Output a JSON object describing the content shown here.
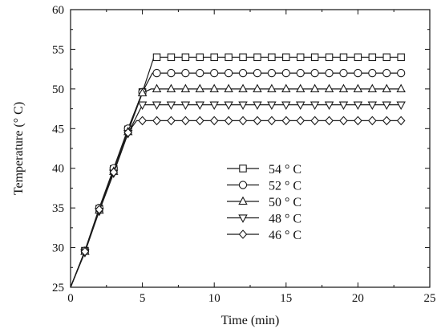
{
  "chart_data": {
    "type": "line",
    "title": "",
    "xlabel": "Time (min)",
    "ylabel": "Temperature (° C)",
    "xlim": [
      0,
      25
    ],
    "ylim": [
      25,
      60
    ],
    "xticks": [
      0,
      5,
      10,
      15,
      20,
      25
    ],
    "yticks": [
      25,
      30,
      35,
      40,
      45,
      50,
      55,
      60
    ],
    "xtick_labels": [
      "0",
      "5",
      "10",
      "15",
      "20",
      "25"
    ],
    "ytick_labels": [
      "25",
      "30",
      "35",
      "40",
      "45",
      "50",
      "55",
      "60"
    ],
    "grid": false,
    "legend_position": "bottom-center",
    "line_color": "#1a1a1a",
    "series": [
      {
        "name": "54 ° C",
        "marker": "square",
        "line": [
          [
            0,
            25
          ],
          [
            1,
            29.6
          ],
          [
            2,
            34.9
          ],
          [
            3,
            39.9
          ],
          [
            4,
            44.9
          ],
          [
            5,
            49.6
          ],
          [
            5.8,
            54
          ]
        ],
        "points": [
          [
            1,
            29.6
          ],
          [
            2,
            34.9
          ],
          [
            3,
            39.9
          ],
          [
            4,
            44.9
          ],
          [
            5,
            49.6
          ],
          [
            6,
            54
          ],
          [
            7,
            54
          ],
          [
            8,
            54
          ],
          [
            9,
            54
          ],
          [
            10,
            54
          ],
          [
            11,
            54
          ],
          [
            12,
            54
          ],
          [
            13,
            54
          ],
          [
            14,
            54
          ],
          [
            15,
            54
          ],
          [
            16,
            54
          ],
          [
            17,
            54
          ],
          [
            18,
            54
          ],
          [
            19,
            54
          ],
          [
            20,
            54
          ],
          [
            21,
            54
          ],
          [
            22,
            54
          ],
          [
            23,
            54
          ]
        ]
      },
      {
        "name": "52 ° C",
        "marker": "circle",
        "line": [
          [
            0,
            25
          ],
          [
            1,
            29.6
          ],
          [
            2,
            35.0
          ],
          [
            3,
            40.0
          ],
          [
            4,
            45.0
          ],
          [
            5,
            49.6
          ],
          [
            5.7,
            52
          ]
        ],
        "points": [
          [
            1,
            29.6
          ],
          [
            2,
            35.0
          ],
          [
            3,
            40.0
          ],
          [
            4,
            45.0
          ],
          [
            5,
            49.6
          ],
          [
            6,
            52
          ],
          [
            7,
            52
          ],
          [
            8,
            52
          ],
          [
            9,
            52
          ],
          [
            10,
            52
          ],
          [
            11,
            52
          ],
          [
            12,
            52
          ],
          [
            13,
            52
          ],
          [
            14,
            52
          ],
          [
            15,
            52
          ],
          [
            16,
            52
          ],
          [
            17,
            52
          ],
          [
            18,
            52
          ],
          [
            19,
            52
          ],
          [
            20,
            52
          ],
          [
            21,
            52
          ],
          [
            22,
            52
          ],
          [
            23,
            52
          ]
        ]
      },
      {
        "name": "50 ° C",
        "marker": "triangle-up",
        "line": [
          [
            0,
            25
          ],
          [
            1,
            29.5
          ],
          [
            2,
            34.7
          ],
          [
            3,
            39.6
          ],
          [
            4,
            44.6
          ],
          [
            5,
            49.5
          ],
          [
            5.6,
            50
          ]
        ],
        "points": [
          [
            1,
            29.5
          ],
          [
            2,
            34.7
          ],
          [
            3,
            39.6
          ],
          [
            4,
            44.6
          ],
          [
            5,
            49.5
          ],
          [
            6,
            50
          ],
          [
            7,
            50
          ],
          [
            8,
            50
          ],
          [
            9,
            50
          ],
          [
            10,
            50
          ],
          [
            11,
            50
          ],
          [
            12,
            50
          ],
          [
            13,
            50
          ],
          [
            14,
            50
          ],
          [
            15,
            50
          ],
          [
            16,
            50
          ],
          [
            17,
            50
          ],
          [
            18,
            50
          ],
          [
            19,
            50
          ],
          [
            20,
            50
          ],
          [
            21,
            50
          ],
          [
            22,
            50
          ],
          [
            23,
            50
          ]
        ]
      },
      {
        "name": "48 ° C",
        "marker": "triangle-down",
        "line": [
          [
            0,
            25
          ],
          [
            1,
            29.4
          ],
          [
            2,
            34.6
          ],
          [
            3,
            39.4
          ],
          [
            4,
            44.4
          ],
          [
            5,
            48
          ]
        ],
        "points": [
          [
            1,
            29.4
          ],
          [
            2,
            34.6
          ],
          [
            3,
            39.4
          ],
          [
            4,
            44.4
          ],
          [
            5,
            48
          ],
          [
            6,
            48
          ],
          [
            7,
            48
          ],
          [
            8,
            48
          ],
          [
            9,
            48
          ],
          [
            10,
            48
          ],
          [
            11,
            48
          ],
          [
            12,
            48
          ],
          [
            13,
            48
          ],
          [
            14,
            48
          ],
          [
            15,
            48
          ],
          [
            16,
            48
          ],
          [
            17,
            48
          ],
          [
            18,
            48
          ],
          [
            19,
            48
          ],
          [
            20,
            48
          ],
          [
            21,
            48
          ],
          [
            22,
            48
          ],
          [
            23,
            48
          ]
        ]
      },
      {
        "name": "46 ° C",
        "marker": "diamond",
        "line": [
          [
            0,
            25
          ],
          [
            1,
            29.5
          ],
          [
            2,
            34.8
          ],
          [
            3,
            39.5
          ],
          [
            4,
            44.5
          ],
          [
            4.6,
            46
          ]
        ],
        "points": [
          [
            1,
            29.5
          ],
          [
            2,
            34.8
          ],
          [
            3,
            39.5
          ],
          [
            4,
            44.5
          ],
          [
            5,
            46
          ],
          [
            6,
            46
          ],
          [
            7,
            46
          ],
          [
            8,
            46
          ],
          [
            9,
            46
          ],
          [
            10,
            46
          ],
          [
            11,
            46
          ],
          [
            12,
            46
          ],
          [
            13,
            46
          ],
          [
            14,
            46
          ],
          [
            15,
            46
          ],
          [
            16,
            46
          ],
          [
            17,
            46
          ],
          [
            18,
            46
          ],
          [
            19,
            46
          ],
          [
            20,
            46
          ],
          [
            21,
            46
          ],
          [
            22,
            46
          ],
          [
            23,
            46
          ]
        ]
      }
    ]
  }
}
